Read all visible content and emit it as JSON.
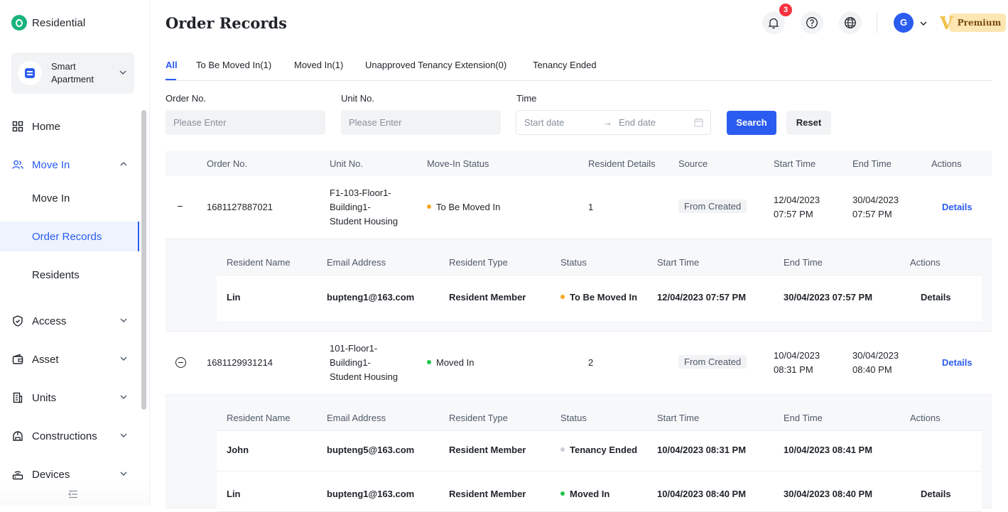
{
  "brand": {
    "name": "Residential"
  },
  "project": {
    "name": "Smart Apartment"
  },
  "sidebar": {
    "items": [
      {
        "label": "Home"
      },
      {
        "label": "Move In"
      },
      {
        "label": "Move In"
      },
      {
        "label": "Order Records"
      },
      {
        "label": "Residents"
      },
      {
        "label": "Access"
      },
      {
        "label": "Asset"
      },
      {
        "label": "Units"
      },
      {
        "label": "Constructions"
      },
      {
        "label": "Devices"
      }
    ]
  },
  "header": {
    "title": "Order Records",
    "notification_count": "3",
    "avatar_letter": "G",
    "premium_mark": "V",
    "premium_label": "Premium"
  },
  "tabs": [
    {
      "label": "All"
    },
    {
      "label": "To Be Moved In(1)"
    },
    {
      "label": "Moved In(1)"
    },
    {
      "label": "Unapproved Tenancy Extension(0)"
    },
    {
      "label": "Tenancy Ended"
    }
  ],
  "filters": {
    "order_label": "Order No.",
    "order_placeholder": "Please Enter",
    "unit_label": "Unit No.",
    "unit_placeholder": "Please Enter",
    "time_label": "Time",
    "start_placeholder": "Start date",
    "end_placeholder": "End date",
    "arrow": "→",
    "search_label": "Search",
    "reset_label": "Reset"
  },
  "table": {
    "headers": {
      "order_no": "Order No.",
      "unit_no": "Unit No.",
      "status": "Move-In Status",
      "resident_details": "Resident Details",
      "source": "Source",
      "start": "Start Time",
      "end": "End Time",
      "actions": "Actions"
    },
    "rows": [
      {
        "order_no": "1681127887021",
        "unit_no": [
          "F1-103-Floor1-",
          "Building1-",
          "Student Housing"
        ],
        "status": "To Be Moved In",
        "status_color": "#f5a623",
        "resident_details": "1",
        "source": "From Created",
        "start": [
          "12/04/2023",
          "07:57 PM"
        ],
        "end": [
          "30/04/2023",
          "07:57 PM"
        ],
        "action": "Details"
      },
      {
        "order_no": "1681129931214",
        "unit_no": [
          "101-Floor1-",
          "Building1-",
          "Student Housing"
        ],
        "status": "Moved In",
        "status_color": "#1fc44a",
        "resident_details": "2",
        "source": "From Created",
        "start": [
          "10/04/2023",
          "08:31 PM"
        ],
        "end": [
          "30/04/2023",
          "08:40 PM"
        ],
        "action": "Details"
      }
    ]
  },
  "subtable": {
    "headers": {
      "name": "Resident Name",
      "email": "Email Address",
      "type": "Resident Type",
      "status": "Status",
      "start": "Start Time",
      "end": "End Time",
      "actions": "Actions"
    },
    "groups": [
      [
        {
          "name": "Lin",
          "email": "bupteng1@163.com",
          "type": "Resident Member",
          "status": "To Be Moved In",
          "status_color": "#f5a623",
          "start": "12/04/2023 07:57 PM",
          "end": "30/04/2023 07:57 PM",
          "action": "Details"
        }
      ],
      [
        {
          "name": "John",
          "email": "bupteng5@163.com",
          "type": "Resident Member",
          "status": "Tenancy Ended",
          "status_color": "#c9cdd4",
          "start": "10/04/2023 08:31 PM",
          "end": "10/04/2023 08:41 PM",
          "action": ""
        },
        {
          "name": "Lin",
          "email": "bupteng1@163.com",
          "type": "Resident Member",
          "status": "Moved In",
          "status_color": "#1fc44a",
          "start": "10/04/2023 08:40 PM",
          "end": "30/04/2023 08:40 PM",
          "action": "Details"
        }
      ]
    ]
  }
}
